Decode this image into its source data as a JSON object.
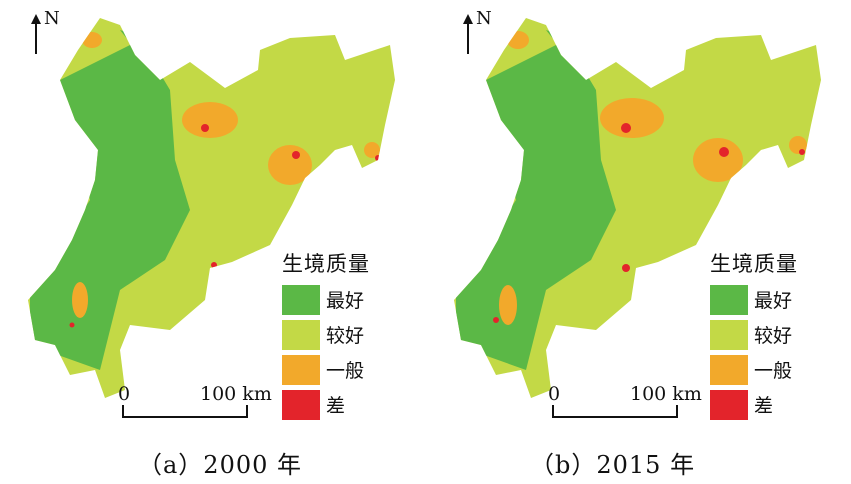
{
  "map": {
    "north_label": "N",
    "legend_title": "生境质量",
    "legend": [
      {
        "label": "最好",
        "color": "#5bb846"
      },
      {
        "label": "较好",
        "color": "#c3d946"
      },
      {
        "label": "一般",
        "color": "#f2a92b"
      },
      {
        "label": "差",
        "color": "#e3242b"
      }
    ],
    "scale": {
      "start": "0",
      "end": "100 km"
    },
    "panels": [
      {
        "caption": "（a）2000 年"
      },
      {
        "caption": "（b）2015 年"
      }
    ]
  }
}
